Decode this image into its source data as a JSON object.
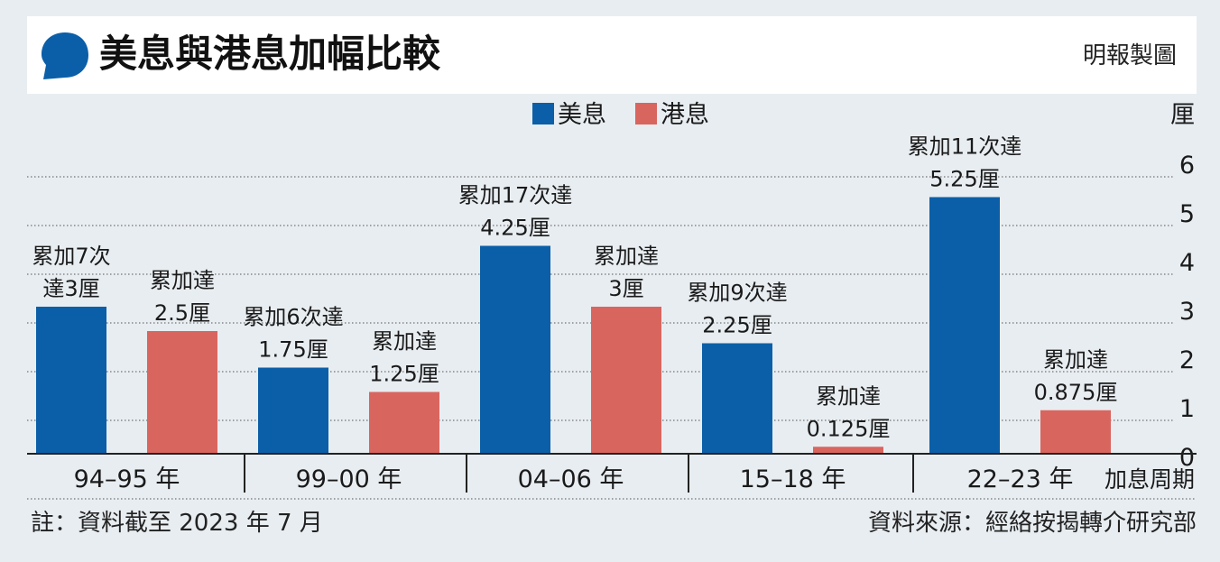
{
  "header": {
    "title": "美息與港息加幅比較",
    "credit": "明報製圖"
  },
  "footer": {
    "note": "註：資料截至 2023 年 7 月",
    "source": "資料來源：經絡按揭轉介研究部"
  },
  "colors": {
    "us": "#0b5fa8",
    "hk": "#d9655f",
    "text": "#1a1a1a",
    "background": "#e8edf1"
  },
  "chart_data": {
    "type": "bar",
    "ylabel": "厘",
    "xlabel": "加息周期",
    "ylim": [
      0,
      6
    ],
    "yticks": [
      0,
      1,
      2,
      3,
      4,
      5,
      6
    ],
    "grid": true,
    "legend_position": "top-center",
    "categories": [
      "94–95 年",
      "99–00 年",
      "04–06 年",
      "15–18 年",
      "22–23 年"
    ],
    "series": [
      {
        "name": "美息",
        "values": [
          3,
          1.75,
          4.25,
          2.25,
          5.25
        ],
        "labels": [
          [
            "累加7次",
            "達3厘"
          ],
          [
            "累加6次達",
            "1.75厘"
          ],
          [
            "累加17次達",
            "4.25厘"
          ],
          [
            "累加9次達",
            "2.25厘"
          ],
          [
            "累加11次達",
            "5.25厘"
          ]
        ]
      },
      {
        "name": "港息",
        "values": [
          2.5,
          1.25,
          3,
          0.125,
          0.875
        ],
        "labels": [
          [
            "累加達",
            "2.5厘"
          ],
          [
            "累加達",
            "1.25厘"
          ],
          [
            "累加達",
            "3厘"
          ],
          [
            "累加達",
            "0.125厘"
          ],
          [
            "累加達",
            "0.875厘"
          ]
        ]
      }
    ]
  }
}
